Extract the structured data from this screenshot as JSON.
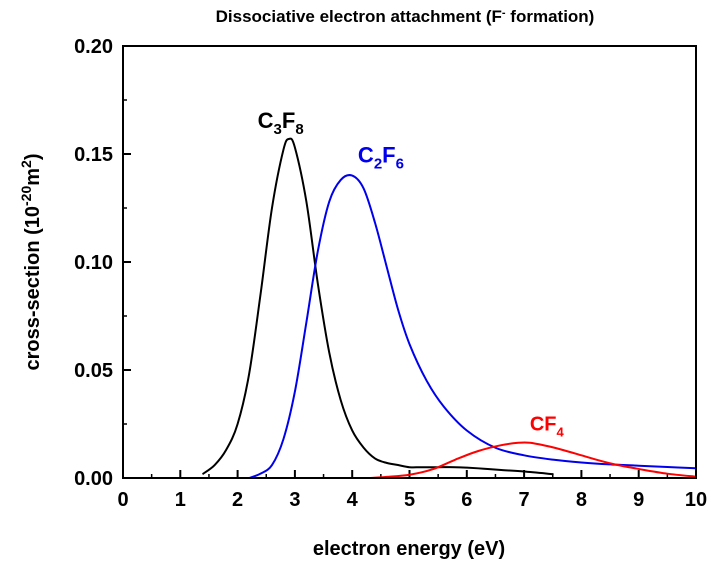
{
  "chart_data": {
    "type": "line",
    "title": {
      "main": "Dissociative electron attachment (F",
      "sup": "-",
      "tail": " formation)"
    },
    "xlabel": "electron energy (eV)",
    "ylabel": {
      "main": "cross-section (10",
      "sup1": "-20",
      "mid": "m",
      "sup2": "2",
      "tail": ")"
    },
    "xlim": [
      0,
      10
    ],
    "ylim": [
      0,
      0.2
    ],
    "x_ticks": [
      "0",
      "1",
      "2",
      "3",
      "4",
      "5",
      "6",
      "7",
      "8",
      "9",
      "10"
    ],
    "y_ticks": [
      "0.00",
      "0.05",
      "0.10",
      "0.15",
      "0.20"
    ],
    "grid": false,
    "series": [
      {
        "name": "C3F8",
        "label": {
          "a": "C",
          "sub1": "3",
          "b": "F",
          "sub2": "8"
        },
        "color": "#000000",
        "label_at": [
          2.35,
          0.162
        ],
        "x": [
          1.4,
          1.6,
          1.8,
          2.0,
          2.2,
          2.4,
          2.6,
          2.8,
          2.9,
          3.0,
          3.2,
          3.4,
          3.6,
          3.8,
          4.0,
          4.2,
          4.4,
          4.6,
          4.8,
          5.0,
          5.2,
          5.5,
          5.8,
          6.0,
          6.3,
          6.6,
          7.0,
          7.5
        ],
        "y": [
          0.002,
          0.006,
          0.013,
          0.025,
          0.048,
          0.085,
          0.125,
          0.152,
          0.157,
          0.153,
          0.128,
          0.09,
          0.058,
          0.036,
          0.022,
          0.014,
          0.009,
          0.007,
          0.006,
          0.005,
          0.005,
          0.005,
          0.005,
          0.0048,
          0.0043,
          0.0037,
          0.003,
          0.0018
        ]
      },
      {
        "name": "C2F6",
        "label": {
          "a": "C",
          "sub1": "2",
          "b": "F",
          "sub2": "6"
        },
        "color": "#0000ee",
        "label_at": [
          4.1,
          0.146
        ],
        "x": [
          2.2,
          2.4,
          2.6,
          2.8,
          3.0,
          3.2,
          3.4,
          3.6,
          3.8,
          4.0,
          4.2,
          4.4,
          4.6,
          4.8,
          5.0,
          5.3,
          5.6,
          6.0,
          6.5,
          7.0,
          7.5,
          8.0,
          8.5,
          9.0,
          9.5,
          10.0
        ],
        "y": [
          0.0,
          0.002,
          0.006,
          0.018,
          0.04,
          0.072,
          0.105,
          0.128,
          0.138,
          0.14,
          0.134,
          0.118,
          0.098,
          0.078,
          0.062,
          0.045,
          0.033,
          0.022,
          0.014,
          0.0105,
          0.0085,
          0.0072,
          0.0063,
          0.0057,
          0.0051,
          0.0045
        ]
      },
      {
        "name": "CF4",
        "label": {
          "a": "CF",
          "sub1": "4",
          "b": "",
          "sub2": ""
        },
        "color": "#ff0000",
        "label_at": [
          7.1,
          0.022
        ],
        "x": [
          4.3,
          4.6,
          5.0,
          5.4,
          5.8,
          6.2,
          6.6,
          6.9,
          7.1,
          7.4,
          7.7,
          8.0,
          8.3,
          8.6,
          9.0,
          9.5,
          10.0
        ],
        "y": [
          0.0,
          0.0005,
          0.0015,
          0.004,
          0.0085,
          0.0125,
          0.0152,
          0.0163,
          0.0163,
          0.0148,
          0.0128,
          0.0105,
          0.0082,
          0.0062,
          0.0042,
          0.002,
          0.0006
        ]
      }
    ]
  }
}
